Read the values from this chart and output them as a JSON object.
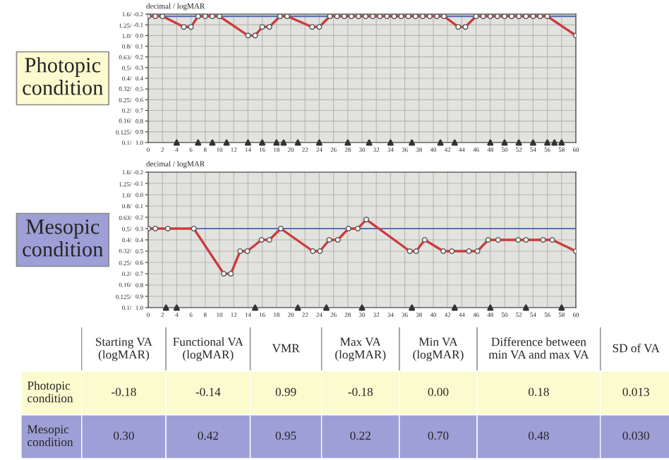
{
  "chart_data": [
    {
      "type": "line",
      "title": "Photopic condition",
      "ylabel": "decimal / logMAR",
      "xlim": [
        0,
        60
      ],
      "xticks": [
        0,
        2,
        4,
        6,
        8,
        10,
        12,
        14,
        16,
        18,
        20,
        22,
        24,
        26,
        28,
        30,
        32,
        34,
        36,
        38,
        40,
        42,
        44,
        46,
        48,
        50,
        52,
        54,
        56,
        58,
        60
      ],
      "ylim": [
        1.0,
        -0.2
      ],
      "yticks": [
        {
          "value": -0.2,
          "label": "-0.2"
        },
        {
          "value": -0.1,
          "label": "-0.1"
        },
        {
          "value": 0.0,
          "label": "0.0"
        },
        {
          "value": 0.1,
          "label": "0.1"
        },
        {
          "value": 0.2,
          "label": "0.2"
        },
        {
          "value": 0.3,
          "label": "0.3"
        },
        {
          "value": 0.4,
          "label": "0.4"
        },
        {
          "value": 0.5,
          "label": "0.5"
        },
        {
          "value": 0.6,
          "label": "0.6"
        },
        {
          "value": 0.7,
          "label": "0.7"
        },
        {
          "value": 0.8,
          "label": "0.8"
        },
        {
          "value": 0.9,
          "label": "0.9"
        },
        {
          "value": 1.0,
          "label": "1.0"
        }
      ],
      "log": "y2",
      "y2lim": [
        0.1,
        1.6
      ],
      "y2ticks": [
        {
          "value": 1.6,
          "label": "1.6/"
        },
        {
          "value": 1.25,
          "label": "1.25/"
        },
        {
          "value": 1.0,
          "label": "1.0/"
        },
        {
          "value": 0.8,
          "label": "0.8/"
        },
        {
          "value": 0.63,
          "label": "0.63/"
        },
        {
          "value": 0.5,
          "label": "0.5/"
        },
        {
          "value": 0.4,
          "label": "0.4/"
        },
        {
          "value": 0.32,
          "label": "0.32/"
        },
        {
          "value": 0.25,
          "label": "0.25/"
        },
        {
          "value": 0.2,
          "label": "0.2/"
        },
        {
          "value": 0.16,
          "label": "0.16/"
        },
        {
          "value": 0.125,
          "label": "0.125/"
        },
        {
          "value": 0.1,
          "label": "0.1/"
        }
      ],
      "grid": true,
      "ref_lines": [
        {
          "axis": "y",
          "value": -0.18,
          "color": "#5a6fb8"
        }
      ],
      "series": [
        {
          "type": "line",
          "marker": "circle",
          "color": "#cc3b3b",
          "x": [
            0,
            1,
            2,
            5,
            6,
            7,
            8,
            9,
            10,
            14,
            15,
            16,
            17,
            18.5,
            19.5,
            23,
            24,
            25.5,
            26.5,
            27.5,
            28.5,
            29.5,
            30.5,
            31.5,
            32.5,
            33.5,
            34.5,
            35.5,
            36.5,
            37.5,
            38.5,
            39.5,
            40.5,
            41.5,
            43.5,
            44.5,
            46,
            47,
            48,
            49,
            50,
            51,
            52,
            53,
            54,
            55,
            56,
            60
          ],
          "values": [
            -0.18,
            -0.18,
            -0.18,
            -0.08,
            -0.08,
            -0.18,
            -0.18,
            -0.18,
            -0.18,
            0.0,
            0.0,
            -0.08,
            -0.08,
            -0.18,
            -0.18,
            -0.08,
            -0.08,
            -0.18,
            -0.18,
            -0.18,
            -0.18,
            -0.18,
            -0.18,
            -0.18,
            -0.18,
            -0.18,
            -0.18,
            -0.18,
            -0.18,
            -0.18,
            -0.18,
            -0.18,
            -0.18,
            -0.18,
            -0.08,
            -0.08,
            -0.18,
            -0.18,
            -0.18,
            -0.18,
            -0.18,
            -0.18,
            -0.18,
            -0.18,
            -0.18,
            -0.18,
            -0.18,
            0.0
          ]
        },
        {
          "type": "scatter",
          "marker": "triangle",
          "color": "#333333",
          "x": [
            4,
            7,
            9,
            11,
            14,
            16,
            18,
            19,
            21,
            24,
            28,
            31,
            34,
            37,
            41,
            43,
            48,
            50,
            52,
            54,
            56,
            57,
            58
          ],
          "values": [
            1.0,
            1.0,
            1.0,
            1.0,
            1.0,
            1.0,
            1.0,
            1.0,
            1.0,
            1.0,
            1.0,
            1.0,
            1.0,
            1.0,
            1.0,
            1.0,
            1.0,
            1.0,
            1.0,
            1.0,
            1.0,
            1.0,
            1.0
          ]
        }
      ]
    },
    {
      "type": "line",
      "title": "Mesopic condition",
      "ylabel": "decimal / logMAR",
      "xlim": [
        0,
        60
      ],
      "xticks": [
        0,
        2,
        4,
        6,
        8,
        10,
        12,
        14,
        16,
        18,
        20,
        22,
        24,
        26,
        28,
        30,
        32,
        34,
        36,
        38,
        40,
        42,
        44,
        46,
        48,
        50,
        52,
        54,
        56,
        58,
        60
      ],
      "ylim": [
        1.0,
        -0.2
      ],
      "yticks": [
        {
          "value": -0.2,
          "label": "-0.2"
        },
        {
          "value": -0.1,
          "label": "-0.1"
        },
        {
          "value": 0.0,
          "label": "0.0"
        },
        {
          "value": 0.1,
          "label": "0.1"
        },
        {
          "value": 0.2,
          "label": "0.2"
        },
        {
          "value": 0.3,
          "label": "0.3"
        },
        {
          "value": 0.4,
          "label": "0.4"
        },
        {
          "value": 0.5,
          "label": "0.5"
        },
        {
          "value": 0.6,
          "label": "0.6"
        },
        {
          "value": 0.7,
          "label": "0.7"
        },
        {
          "value": 0.8,
          "label": "0.8"
        },
        {
          "value": 0.9,
          "label": "0.9"
        },
        {
          "value": 1.0,
          "label": "1.0"
        }
      ],
      "log": "y2",
      "y2lim": [
        0.1,
        1.6
      ],
      "y2ticks": [
        {
          "value": 1.6,
          "label": "1.6/"
        },
        {
          "value": 1.25,
          "label": "1.25/"
        },
        {
          "value": 1.0,
          "label": "1.0/"
        },
        {
          "value": 0.8,
          "label": "0.8/"
        },
        {
          "value": 0.63,
          "label": "0.63/"
        },
        {
          "value": 0.5,
          "label": "0.5/"
        },
        {
          "value": 0.4,
          "label": "0.4/"
        },
        {
          "value": 0.32,
          "label": "0.32/"
        },
        {
          "value": 0.25,
          "label": "0.25/"
        },
        {
          "value": 0.2,
          "label": "0.2/"
        },
        {
          "value": 0.16,
          "label": "0.16/"
        },
        {
          "value": 0.125,
          "label": "0.125/"
        },
        {
          "value": 0.1,
          "label": "0.1/"
        }
      ],
      "grid": true,
      "ref_lines": [
        {
          "axis": "y",
          "value": 0.3,
          "color": "#5a6fb8"
        }
      ],
      "series": [
        {
          "type": "line",
          "marker": "circle",
          "color": "#cc3b3b",
          "x": [
            0,
            1,
            2.75,
            6.4,
            10.6,
            11.6,
            12.9,
            13.9,
            15.9,
            17,
            18.6,
            23.1,
            24.1,
            25.4,
            26.6,
            28.1,
            29.4,
            30.6,
            36.7,
            37.6,
            38.8,
            41.4,
            42.6,
            45,
            46.2,
            47.7,
            49.1,
            51.9,
            53,
            55.4,
            56.7,
            60
          ],
          "values": [
            0.3,
            0.3,
            0.3,
            0.3,
            0.7,
            0.7,
            0.5,
            0.5,
            0.4,
            0.4,
            0.3,
            0.5,
            0.5,
            0.4,
            0.4,
            0.3,
            0.3,
            0.22,
            0.5,
            0.5,
            0.4,
            0.5,
            0.5,
            0.5,
            0.5,
            0.4,
            0.4,
            0.4,
            0.4,
            0.4,
            0.4,
            0.5
          ]
        },
        {
          "type": "scatter",
          "marker": "triangle",
          "color": "#333333",
          "x": [
            2.5,
            4,
            15,
            21,
            25,
            30,
            37,
            43,
            48,
            53,
            58
          ],
          "values": [
            1.0,
            1.0,
            1.0,
            1.0,
            1.0,
            1.0,
            1.0,
            1.0,
            1.0,
            1.0,
            1.0
          ]
        }
      ]
    },
    {
      "type": "other",
      "categories": [
        "Starting VA (logMAR)",
        "Functional VA (logMAR)",
        "VMR",
        "Max VA (logMAR)",
        "Min VA (logMAR)",
        "Difference between min VA and max VA",
        "SD of VA"
      ],
      "y_categories": [
        "Photopic condition",
        "Mesopic condition"
      ],
      "colors": [
        "#fbfbcf",
        "#9d9fd6"
      ],
      "cell_labels": [
        [
          "-0.18",
          "-0.14",
          "0.99",
          "-0.18",
          "0.00",
          "0.18",
          "0.013"
        ],
        [
          "0.30",
          "0.42",
          "0.95",
          "0.22",
          "0.70",
          "0.48",
          "0.030"
        ]
      ]
    }
  ]
}
